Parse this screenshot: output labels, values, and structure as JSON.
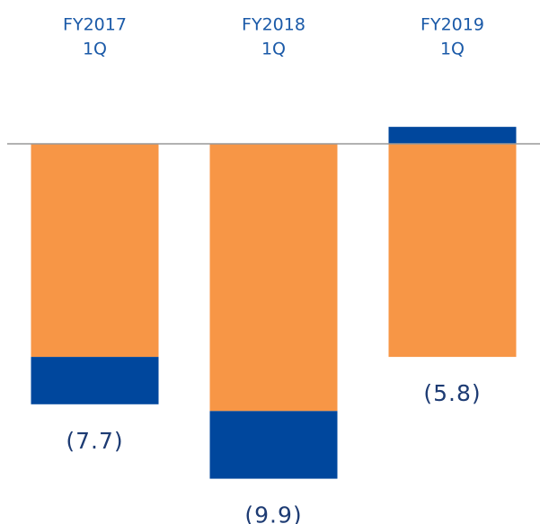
{
  "chart_data": {
    "type": "stacked_bar",
    "categories": [
      [
        "FY2017",
        "1Q"
      ],
      [
        "FY2018",
        "1Q"
      ],
      [
        "FY2019",
        "1Q"
      ]
    ],
    "series": [
      {
        "color": "#f79646",
        "values": [
          -6.3,
          -7.9,
          -6.3
        ]
      },
      {
        "color": "#00479d",
        "values": [
          -1.4,
          -2.0,
          0.5
        ]
      }
    ],
    "totals": [
      -7.7,
      -9.9,
      -5.8
    ],
    "total_labels": [
      "(7.7)",
      "(9.9)",
      "(5.8)"
    ],
    "ylim": [
      -11,
      4
    ]
  }
}
